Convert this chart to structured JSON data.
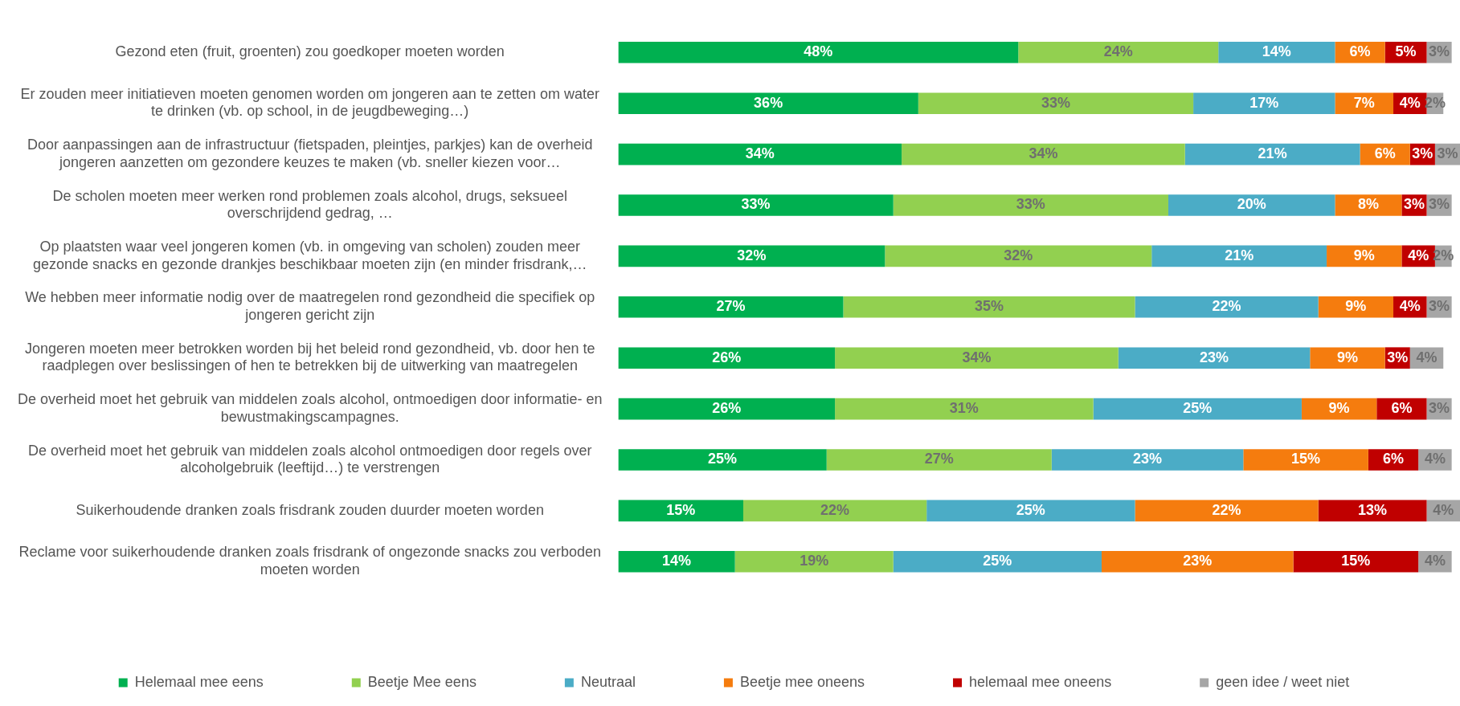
{
  "chart_data": {
    "type": "bar",
    "orientation": "horizontal",
    "stacked": true,
    "categories": [
      "Gezond eten (fruit, groenten) zou goedkoper moeten worden",
      "Er zouden meer initiatieven moeten genomen worden om jongeren aan te zetten om water te drinken (vb. op school, in de jeugdbeweging…)",
      "Door aanpassingen aan de infrastructuur (fietspaden, pleintjes, parkjes) kan de overheid jongeren aanzetten om gezondere keuzes te maken (vb. sneller kiezen voor…",
      "De scholen moeten meer werken rond problemen zoals alcohol, drugs, seksueel overschrijdend gedrag, …",
      "Op plaatsten waar veel jongeren komen (vb. in omgeving van scholen) zouden meer gezonde snacks en gezonde drankjes beschikbaar moeten zijn (en minder frisdrank,…",
      "We hebben meer informatie nodig over de maatregelen rond gezondheid die specifiek op jongeren gericht zijn",
      "Jongeren moeten meer betrokken worden bij het beleid rond gezondheid, vb. door hen te raadplegen over beslissingen of hen te betrekken bij de uitwerking van maatregelen",
      "De overheid moet het gebruik van middelen zoals alcohol, ontmoedigen door informatie- en bewustmakingscampagnes.",
      "De overheid moet het gebruik van middelen zoals alcohol ontmoedigen door regels over alcoholgebruik (leeftijd…) te verstrengen",
      "Suikerhoudende dranken zoals frisdrank zouden duurder moeten worden",
      "Reclame voor suikerhoudende dranken zoals frisdrank of ongezonde snacks zou verboden moeten worden"
    ],
    "series": [
      {
        "name": "Helemaal mee eens",
        "color": "#00b050",
        "values": [
          48,
          36,
          34,
          33,
          32,
          27,
          26,
          26,
          25,
          15,
          14
        ],
        "value_labels": [
          "48%",
          "36%",
          "34%",
          "33%",
          "32%",
          "27%",
          "26%",
          "26%",
          "25%",
          "15%",
          "14%"
        ]
      },
      {
        "name": "Beetje Mee eens",
        "color": "#92d050",
        "values": [
          24,
          33,
          34,
          33,
          32,
          35,
          34,
          31,
          27,
          22,
          19
        ],
        "value_labels": [
          "24%",
          "33%",
          "34%",
          "33%",
          "32%",
          "35%",
          "34%",
          "31%",
          "27%",
          "22%",
          "19%"
        ]
      },
      {
        "name": "Neutraal",
        "color": "#4bacc6",
        "values": [
          14,
          17,
          21,
          20,
          21,
          22,
          23,
          25,
          23,
          25,
          25
        ],
        "value_labels": [
          "14%",
          "17%",
          "21%",
          "20%",
          "21%",
          "22%",
          "23%",
          "25%",
          "23%",
          "25%",
          "25%"
        ]
      },
      {
        "name": "Beetje mee oneens",
        "color": "#f57c0e",
        "values": [
          6,
          7,
          6,
          8,
          9,
          9,
          9,
          9,
          15,
          22,
          23
        ],
        "value_labels": [
          "6%",
          "7%",
          "6%",
          "8%",
          "9%",
          "9%",
          "9%",
          "9%",
          "15%",
          "22%",
          "23%"
        ]
      },
      {
        "name": "helemaal mee oneens",
        "color": "#c00000",
        "values": [
          5,
          4,
          3,
          3,
          4,
          4,
          3,
          6,
          6,
          13,
          15
        ],
        "value_labels": [
          "5%",
          "4%",
          "3%",
          "3%",
          "4%",
          "4%",
          "3%",
          "6%",
          "6%",
          "13%",
          "15%"
        ]
      },
      {
        "name": "geen idee / weet niet",
        "color": "#a6a6a6",
        "values": [
          3,
          2,
          3,
          3,
          2,
          3,
          4,
          3,
          4,
          4,
          4
        ],
        "value_labels": [
          "3%",
          "2%",
          "3%",
          "3%",
          "2%",
          "3%",
          "4%",
          "3%",
          "4%",
          "4%",
          "4%"
        ]
      }
    ],
    "tick_labels": "y",
    "legend": "bottom"
  }
}
